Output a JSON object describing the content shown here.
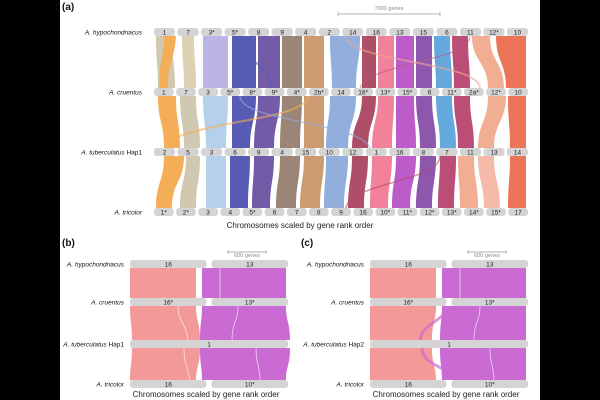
{
  "panels": [
    {
      "letter": "(a)",
      "caption": "Chromosomes scaled by gene rank order",
      "scale_bar": "7000 genes",
      "rows": [
        {
          "name": "A. hypochondriacus",
          "suffix": "",
          "chromosomes": [
            "1",
            "7",
            "3*",
            "5*",
            "8",
            "9",
            "4",
            "2",
            "14",
            "16",
            "13",
            "15",
            "6",
            "11",
            "12*",
            "10"
          ]
        },
        {
          "name": "A. cruentus",
          "suffix": "",
          "chromosomes": [
            "1",
            "7",
            "3",
            "5*",
            "8*",
            "9*",
            "4*",
            "2b*",
            "14",
            "16*",
            "13*",
            "15*",
            "6",
            "11*",
            "2a*",
            "12*",
            "10"
          ]
        },
        {
          "name": "A. tuberculatus",
          "suffix": " Hap1",
          "chromosomes": [
            "2",
            "5",
            "3",
            "6",
            "9",
            "4",
            "15",
            "10",
            "12",
            "1",
            "16",
            "8",
            "7",
            "11",
            "13",
            "14"
          ]
        },
        {
          "name": "A. tricolor",
          "suffix": "",
          "chromosomes": [
            "1*",
            "2*",
            "3",
            "4",
            "5*",
            "6",
            "7",
            "8",
            "9",
            "16",
            "10*",
            "11*",
            "12*",
            "13*",
            "14*",
            "15*",
            "17"
          ]
        }
      ]
    },
    {
      "letter": "(b)",
      "caption": "Chromosomes scaled by gene rank order",
      "scale_bar": "600 genes",
      "rows": [
        {
          "name": "A. hypochondriacus",
          "suffix": "",
          "chromosomes": [
            "16",
            "13"
          ]
        },
        {
          "name": "A. cruentus",
          "suffix": "",
          "chromosomes": [
            "16*",
            "13*"
          ]
        },
        {
          "name": "A. tuberculatus",
          "suffix": " Hap1",
          "chromosomes": [
            "1"
          ]
        },
        {
          "name": "A. tricolor",
          "suffix": "",
          "chromosomes": [
            "16",
            "10*"
          ]
        }
      ]
    },
    {
      "letter": "(c)",
      "caption": "Chromosomes scaled by gene rank order",
      "scale_bar": "600 genes",
      "rows": [
        {
          "name": "A. hypochondriacus",
          "suffix": "",
          "chromosomes": [
            "16",
            "13"
          ]
        },
        {
          "name": "A. cruentus",
          "suffix": "",
          "chromosomes": [
            "16*",
            "13*"
          ]
        },
        {
          "name": "A. tuberculatus",
          "suffix": " Hap2",
          "chromosomes": [
            "1"
          ]
        },
        {
          "name": "A. tricolor",
          "suffix": "",
          "chromosomes": [
            "16",
            "10*"
          ]
        }
      ]
    }
  ],
  "colors": {
    "chromosome_bar": "#d4d4d4",
    "chr16": "#f28e8e",
    "chr13": "#c45ccf",
    "palette_a": [
      "#c8bfa4",
      "#f4a03c",
      "#d6c9a6",
      "#a9a2e0",
      "#3a3fa8",
      "#5c3f9a",
      "#8a7060",
      "#c48a5a",
      "#8fa8c8",
      "#7fa0d8",
      "#b04060",
      "#f06c8a",
      "#b040c0",
      "#7a3aa0",
      "#4a9ad8",
      "#b03060",
      "#e89a80",
      "#e85c3c"
    ]
  }
}
